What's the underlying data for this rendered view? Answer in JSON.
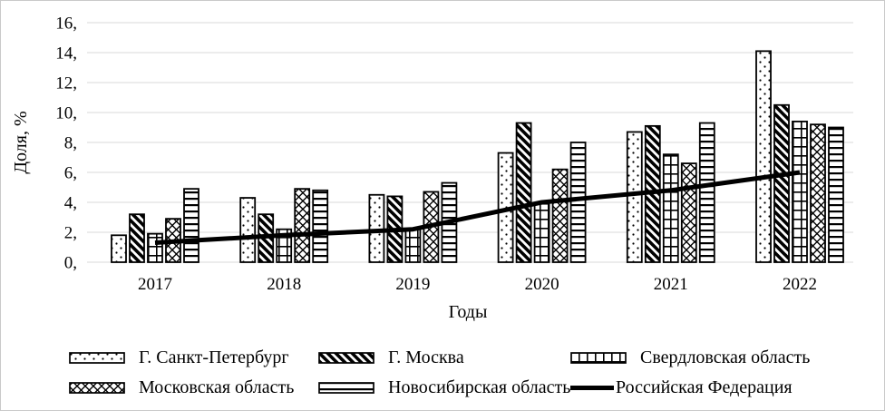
{
  "chart_data": {
    "type": "bar+line",
    "title": "",
    "ylabel": "Доля, %",
    "xlabel": "Годы",
    "categories": [
      "2017",
      "2018",
      "2019",
      "2020",
      "2021",
      "2022"
    ],
    "y_ticks": [
      "0,",
      "2,",
      "4,",
      "6,",
      "8,",
      "10,",
      "12,",
      "14,",
      "16,"
    ],
    "ylim": [
      0,
      16
    ],
    "grid": true,
    "legend_position": "bottom",
    "colors": {
      "bar_stroke": "#000000",
      "line": "#000000",
      "gridline": "#d9d9d9",
      "background": "#ffffff"
    },
    "series": [
      {
        "name": "Г. Санкт-Петербург",
        "type": "bar",
        "pattern": "dots",
        "values": [
          1.8,
          4.3,
          4.5,
          7.3,
          8.7,
          14.1
        ]
      },
      {
        "name": "Г. Москва",
        "type": "bar",
        "pattern": "heavy-diagonal",
        "values": [
          3.2,
          3.2,
          4.4,
          9.3,
          9.1,
          10.5
        ]
      },
      {
        "name": "Свердловская область",
        "type": "bar",
        "pattern": "grid",
        "values": [
          1.9,
          2.2,
          2.2,
          3.9,
          7.2,
          9.4
        ]
      },
      {
        "name": "Московская область",
        "type": "bar",
        "pattern": "diamond",
        "values": [
          2.9,
          4.9,
          4.7,
          6.2,
          6.6,
          9.2
        ]
      },
      {
        "name": "Новосибирская область",
        "type": "bar",
        "pattern": "horizontal",
        "values": [
          4.9,
          4.8,
          5.3,
          8.0,
          9.3,
          9.0
        ]
      },
      {
        "name": "Российская Федерация",
        "type": "line",
        "pattern": "solid-line",
        "values": [
          1.3,
          1.8,
          2.2,
          4.0,
          4.8,
          6.0
        ]
      }
    ]
  }
}
